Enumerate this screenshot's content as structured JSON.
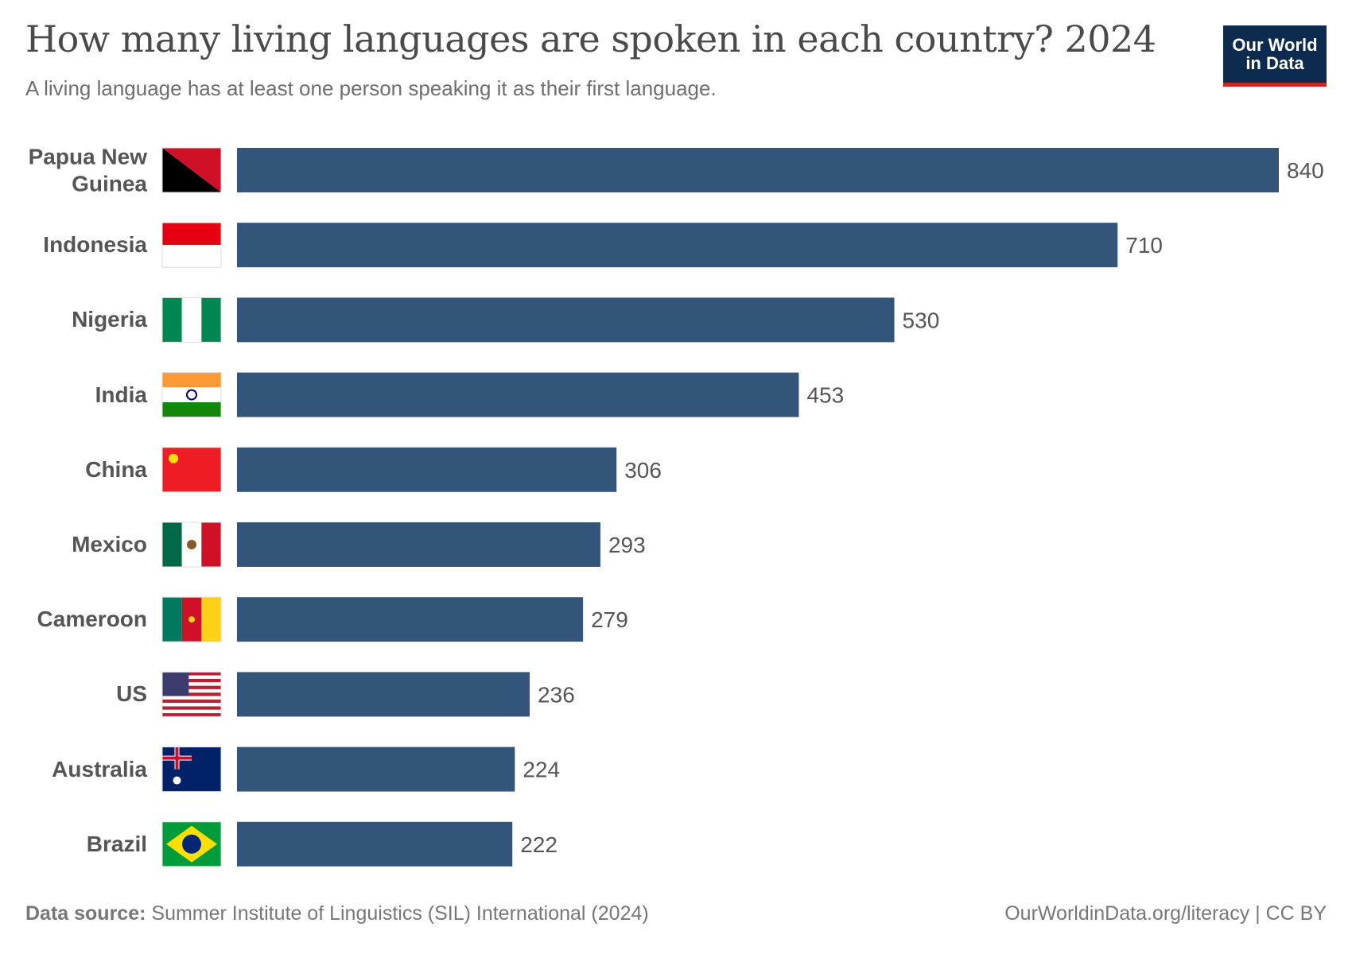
{
  "chart_data": {
    "type": "bar",
    "orientation": "horizontal",
    "title": "How many living languages are spoken in each country? 2024",
    "subtitle": "A living language has at least one person speaking it as their first language.",
    "categories": [
      "Papua New Guinea",
      "Indonesia",
      "Nigeria",
      "India",
      "China",
      "Mexico",
      "Cameroon",
      "US",
      "Australia",
      "Brazil"
    ],
    "values": [
      840,
      710,
      530,
      453,
      306,
      293,
      279,
      236,
      224,
      222
    ],
    "color": "#34557a",
    "source_label": "Data source:",
    "source": "Summer Institute of Linguistics (SIL) International (2024)",
    "credit": "OurWorldinData.org/literacy | CC BY",
    "logo": [
      "Our World",
      "in Data"
    ]
  }
}
